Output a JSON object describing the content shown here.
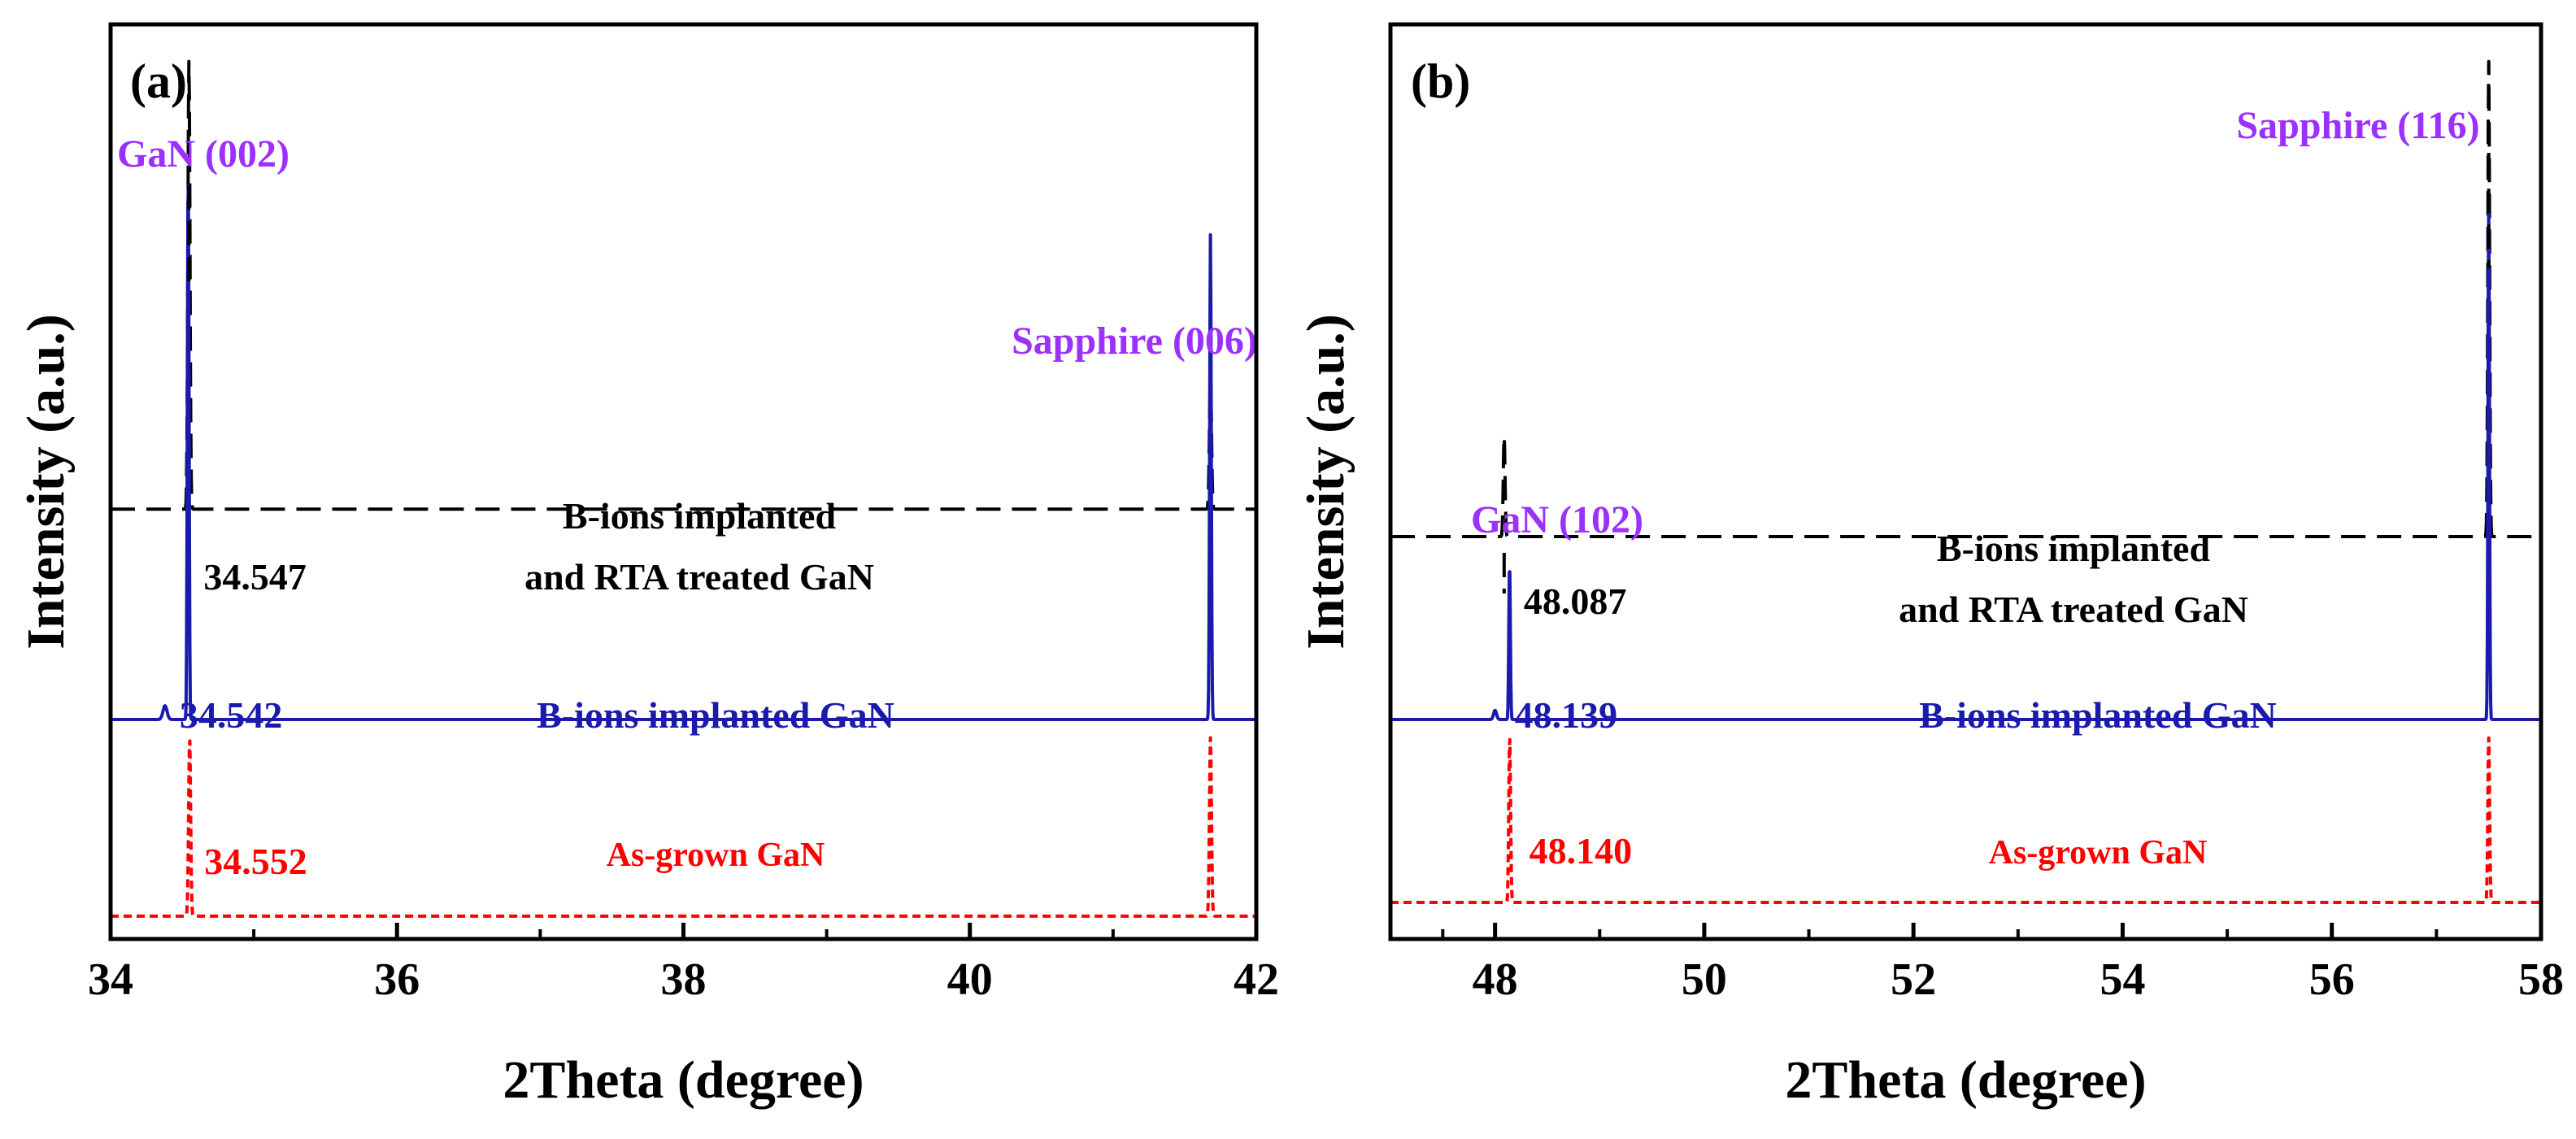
{
  "chart_data": [
    {
      "type": "line",
      "panel_label": "(a)",
      "xlabel": "2Theta (degree)",
      "ylabel": "Intensity (a.u.)",
      "xlim": [
        34,
        42
      ],
      "x_ticks": [
        34,
        36,
        38,
        40,
        42
      ],
      "x_tick_labels": [
        "34",
        "36",
        "38",
        "40",
        "42"
      ],
      "y_ticks": [],
      "grid": false,
      "series": [
        {
          "name": "B-ions implanted and RTA treated GaN",
          "label_lines": [
            "B-ions implanted",
            "and RTA treated GaN"
          ],
          "color": "#000000",
          "dash": "dashed",
          "baseline": 0.47,
          "peaks": [
            {
              "x": 34.547,
              "height": 0.96,
              "width": 0.01
            },
            {
              "x": 41.68,
              "height": 0.62,
              "width": 0.01
            }
          ],
          "peak_label": "34.547"
        },
        {
          "name": "B-ions implanted GaN",
          "label_lines": [
            "B-ions implanted GaN"
          ],
          "color": "#1a1aad",
          "dash": "solid",
          "baseline": 0.24,
          "peaks": [
            {
              "x": 34.38,
              "height": 0.255,
              "width": 0.02
            },
            {
              "x": 34.542,
              "height": 0.84,
              "width": 0.008
            },
            {
              "x": 41.68,
              "height": 0.77,
              "width": 0.008
            }
          ],
          "peak_label": "34.542"
        },
        {
          "name": "As-grown GaN",
          "label_lines": [
            "As-grown GaN"
          ],
          "color": "#ff0000",
          "dash": "dotted",
          "baseline": 0.025,
          "peaks": [
            {
              "x": 34.552,
              "height": 0.22,
              "width": 0.01
            },
            {
              "x": 41.68,
              "height": 0.22,
              "width": 0.01
            }
          ],
          "peak_label": "34.552"
        }
      ],
      "peak_annotations": [
        {
          "text": "GaN (002)",
          "x": 34.547
        },
        {
          "text": "Sapphire (006)",
          "x": 41.68
        }
      ],
      "annotation_color": "#9b30ff"
    },
    {
      "type": "line",
      "panel_label": "(b)",
      "xlabel": "2Theta (degree)",
      "ylabel": "Intensity (a.u.)",
      "xlim": [
        47,
        58
      ],
      "x_ticks": [
        48,
        50,
        52,
        54,
        56,
        58
      ],
      "x_tick_labels": [
        "48",
        "50",
        "52",
        "54",
        "56",
        "58"
      ],
      "y_ticks": [],
      "grid": false,
      "series": [
        {
          "name": "B-ions implanted and RTA treated GaN",
          "label_lines": [
            "B-ions implanted",
            "and RTA treated GaN"
          ],
          "color": "#000000",
          "dash": "dashed",
          "baseline": 0.44,
          "peaks": [
            {
              "x": 48.087,
              "height": 0.55,
              "width": 0.012
            },
            {
              "x": 57.5,
              "height": 0.96,
              "width": 0.012
            }
          ],
          "peak_label": "48.087"
        },
        {
          "name": "B-ions implanted GaN",
          "label_lines": [
            "B-ions implanted GaN"
          ],
          "color": "#1a1aad",
          "dash": "solid",
          "baseline": 0.24,
          "peaks": [
            {
              "x": 48.0,
              "height": 0.25,
              "width": 0.02
            },
            {
              "x": 48.139,
              "height": 0.41,
              "width": 0.01
            },
            {
              "x": 57.5,
              "height": 0.8,
              "width": 0.01
            }
          ],
          "peak_label": "48.139"
        },
        {
          "name": "As-grown GaN",
          "label_lines": [
            "As-grown GaN"
          ],
          "color": "#ff0000",
          "dash": "dotted",
          "baseline": 0.04,
          "peaks": [
            {
              "x": 48.14,
              "height": 0.22,
              "width": 0.012
            },
            {
              "x": 57.5,
              "height": 0.22,
              "width": 0.012
            }
          ],
          "peak_label": "48.140"
        }
      ],
      "peak_annotations": [
        {
          "text": "GaN (102)",
          "x": 48.087
        },
        {
          "text": "Sapphire (116)",
          "x": 57.5
        }
      ],
      "annotation_color": "#9b30ff"
    }
  ]
}
